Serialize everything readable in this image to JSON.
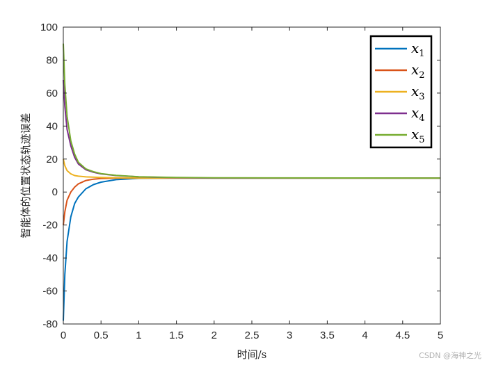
{
  "chart_data": {
    "type": "line",
    "title": "",
    "xlabel": "时间/s",
    "ylabel": "智能体的位置状态轨迹误差",
    "xlim": [
      0,
      5
    ],
    "ylim": [
      -80,
      100
    ],
    "xticks": [
      0,
      0.5,
      1,
      1.5,
      2,
      2.5,
      3,
      3.5,
      4,
      4.5,
      5
    ],
    "yticks": [
      -80,
      -60,
      -40,
      -20,
      0,
      20,
      40,
      60,
      80,
      100
    ],
    "xtick_labels": [
      "0",
      "0.5",
      "1",
      "1.5",
      "2",
      "2.5",
      "3",
      "3.5",
      "4",
      "4.5",
      "5"
    ],
    "ytick_labels": [
      "-80",
      "-60",
      "-40",
      "-20",
      "0",
      "20",
      "40",
      "60",
      "80",
      "100"
    ],
    "grid": false,
    "legend_position": "top-right",
    "series": [
      {
        "name": "x",
        "subscript": "1",
        "color": "#0072BD",
        "x": [
          0,
          0.02,
          0.05,
          0.1,
          0.15,
          0.2,
          0.3,
          0.4,
          0.5,
          0.7,
          1.0,
          1.5,
          2.0,
          5.0
        ],
        "y": [
          -78,
          -50,
          -30,
          -15,
          -7,
          -3,
          2,
          4.5,
          6,
          7.5,
          8.3,
          8.5,
          8.5,
          8.5
        ]
      },
      {
        "name": "x",
        "subscript": "2",
        "color": "#D95319",
        "x": [
          0,
          0.02,
          0.05,
          0.1,
          0.15,
          0.2,
          0.3,
          0.4,
          0.5,
          0.7,
          1.0,
          1.5,
          2.0,
          5.0
        ],
        "y": [
          -20,
          -12,
          -5,
          0,
          3,
          5,
          7,
          7.8,
          8.2,
          8.4,
          8.5,
          8.5,
          8.5,
          8.5
        ]
      },
      {
        "name": "x",
        "subscript": "3",
        "color": "#EDB120",
        "x": [
          0,
          0.02,
          0.05,
          0.1,
          0.15,
          0.2,
          0.3,
          0.5,
          0.7,
          1.0,
          1.5,
          2.0,
          5.0
        ],
        "y": [
          20,
          16,
          13,
          11,
          10,
          9.6,
          9.2,
          8.8,
          8.6,
          8.5,
          8.5,
          8.5,
          8.5
        ]
      },
      {
        "name": "x",
        "subscript": "4",
        "color": "#7E2F8E",
        "x": [
          0,
          0.02,
          0.05,
          0.1,
          0.15,
          0.2,
          0.3,
          0.4,
          0.5,
          0.7,
          1.0,
          1.5,
          2.0,
          5.0
        ],
        "y": [
          68,
          52,
          38,
          28,
          21,
          17,
          13.5,
          12,
          11,
          10,
          9.2,
          8.7,
          8.5,
          8.5
        ]
      },
      {
        "name": "x",
        "subscript": "5",
        "color": "#77AC30",
        "x": [
          0,
          0.02,
          0.05,
          0.1,
          0.15,
          0.2,
          0.3,
          0.4,
          0.5,
          0.7,
          1.0,
          1.5,
          2.0,
          5.0
        ],
        "y": [
          90,
          65,
          46,
          31,
          23,
          18,
          14,
          12.3,
          11.2,
          10.1,
          9.3,
          8.8,
          8.6,
          8.5
        ]
      }
    ]
  },
  "watermark": "CSDN @海神之光"
}
